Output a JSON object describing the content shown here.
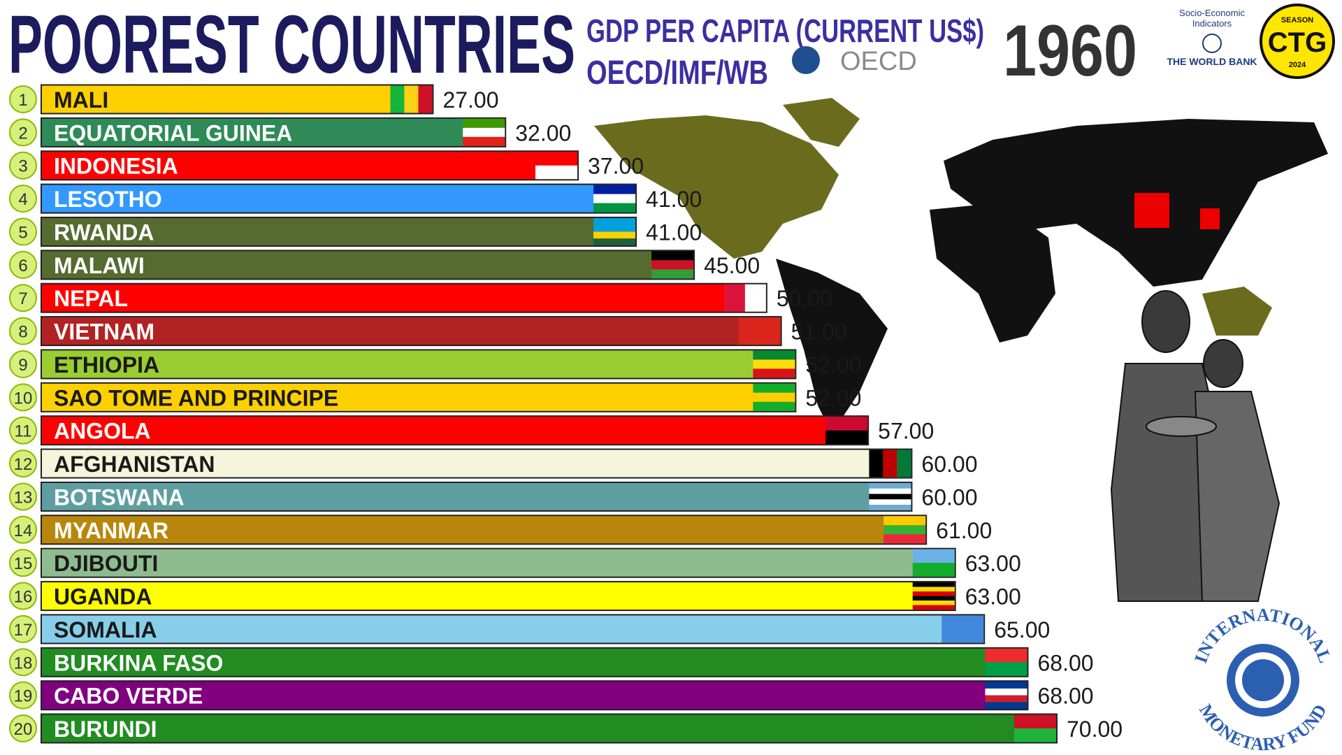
{
  "header": {
    "title": "POOREST COUNTRIES",
    "subtitle": "GDP PER CAPITA (CURRENT US$)",
    "source": "OECD/IMF/WB",
    "year": "1960"
  },
  "logos": {
    "oecd": "OECD",
    "world_bank_line1": "Socio-Economic",
    "world_bank_line2": "Indicators",
    "world_bank": "THE WORLD BANK",
    "badge_season": "SEASON",
    "badge_name": "CTG",
    "badge_year": "2024",
    "imf_top": "INTERNATIONAL",
    "imf_bottom": "MONETARY FUND"
  },
  "chart_data": {
    "type": "bar",
    "orientation": "horizontal",
    "ranks": [
      1,
      2,
      3,
      4,
      5,
      6,
      7,
      8,
      9,
      10,
      11,
      12,
      13,
      14,
      15,
      16,
      17,
      18,
      19,
      20
    ],
    "categories": [
      "MALI",
      "EQUATORIAL GUINEA",
      "INDONESIA",
      "LESOTHO",
      "RWANDA",
      "MALAWI",
      "NEPAL",
      "VIETNAM",
      "ETHIOPIA",
      "SAO TOME AND PRINCIPE",
      "ANGOLA",
      "AFGHANISTAN",
      "BOTSWANA",
      "MYANMAR",
      "DJIBOUTI",
      "UGANDA",
      "SOMALIA",
      "BURKINA FASO",
      "CABO VERDE",
      "BURUNDI"
    ],
    "values": [
      27,
      32,
      37,
      41,
      41,
      45,
      50,
      51,
      52,
      52,
      57,
      60,
      60,
      61,
      63,
      63,
      65,
      68,
      68,
      70
    ],
    "value_labels": [
      "27.00",
      "32.00",
      "37.00",
      "41.00",
      "41.00",
      "45.00",
      "50.00",
      "51.00",
      "52.00",
      "52.00",
      "57.00",
      "60.00",
      "60.00",
      "61.00",
      "63.00",
      "63.00",
      "65.00",
      "68.00",
      "68.00",
      "70.00"
    ],
    "colors": [
      "#ffd000",
      "#2e8b57",
      "#ff0000",
      "#3399ff",
      "#556b2f",
      "#556b2f",
      "#ff0000",
      "#b22222",
      "#9acd32",
      "#ffd000",
      "#ff0000",
      "#f5f5dc",
      "#5f9ea0",
      "#b8860b",
      "#8fbc8f",
      "#ffff00",
      "#87ceeb",
      "#228b22",
      "#800080",
      "#228b22"
    ]
  }
}
